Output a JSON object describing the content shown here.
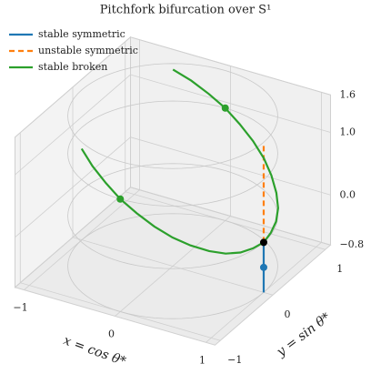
{
  "chart_data": {
    "type": "line3d",
    "title": "Pitchfork bifurcation over S¹",
    "xlabel": "x = cos θ*",
    "ylabel": "y = sin θ*",
    "xlim": [
      -1.1,
      1.1
    ],
    "ylim": [
      -1.1,
      1.1
    ],
    "zlim": [
      -0.8,
      1.6
    ],
    "xticks": [
      {
        "value": -1,
        "label": "−1"
      },
      0,
      1
    ],
    "yticks": [
      {
        "value": -1,
        "label": "−1"
      },
      0,
      1
    ],
    "zticks": [
      {
        "value": -0.8,
        "label": "−0.8"
      },
      {
        "value": 0,
        "label": "0.0"
      },
      {
        "value": 1,
        "label": "1.0"
      },
      1.6
    ],
    "grid": true,
    "legend": "upper left",
    "series": [
      {
        "name": "stable symmetric",
        "color": "#1f77b4",
        "linestyle": "solid",
        "x": [
          1,
          1
        ],
        "y": [
          0,
          0
        ],
        "z": [
          -0.8,
          0
        ]
      },
      {
        "name": "unstable symmetric",
        "color": "#ff7f0e",
        "linestyle": "dashed",
        "x": [
          1,
          1
        ],
        "y": [
          0,
          0
        ],
        "z": [
          0,
          1.6
        ]
      },
      {
        "name": "stable broken",
        "color": "#2ca02c",
        "linestyle": "solid",
        "x": [
          -0.5,
          -0.34,
          -0.17,
          0,
          0.17,
          0.34,
          0.5,
          0.64,
          0.77,
          0.87,
          0.94,
          0.98,
          1,
          0.98,
          0.94,
          0.87,
          0.77,
          0.64,
          0.5,
          0.34,
          0.17,
          0,
          -0.17,
          -0.34,
          -0.5
        ],
        "y": [
          -0.87,
          -0.94,
          -0.98,
          -1,
          -0.98,
          -0.94,
          -0.87,
          -0.77,
          -0.64,
          -0.5,
          -0.34,
          -0.17,
          0,
          0.17,
          0.34,
          0.5,
          0.64,
          0.77,
          0.87,
          0.94,
          0.98,
          1,
          0.98,
          0.94,
          0.87
        ],
        "z": [
          1.5,
          1.34,
          1.17,
          1,
          0.83,
          0.66,
          0.5,
          0.36,
          0.23,
          0.13,
          0.06,
          0.02,
          0,
          0.02,
          0.06,
          0.13,
          0.23,
          0.36,
          0.5,
          0.66,
          0.83,
          1,
          1.17,
          1.34,
          1.5
        ]
      }
    ],
    "markers": [
      {
        "x": 1,
        "y": 0,
        "z": -0.4,
        "color": "#1f77b4"
      },
      {
        "x": 1,
        "y": 0,
        "z": 0,
        "color": "#000000"
      },
      {
        "x": 0,
        "y": 1,
        "z": 1,
        "color": "#2ca02c"
      },
      {
        "x": 0,
        "y": -1,
        "z": 1,
        "color": "#2ca02c"
      }
    ]
  }
}
